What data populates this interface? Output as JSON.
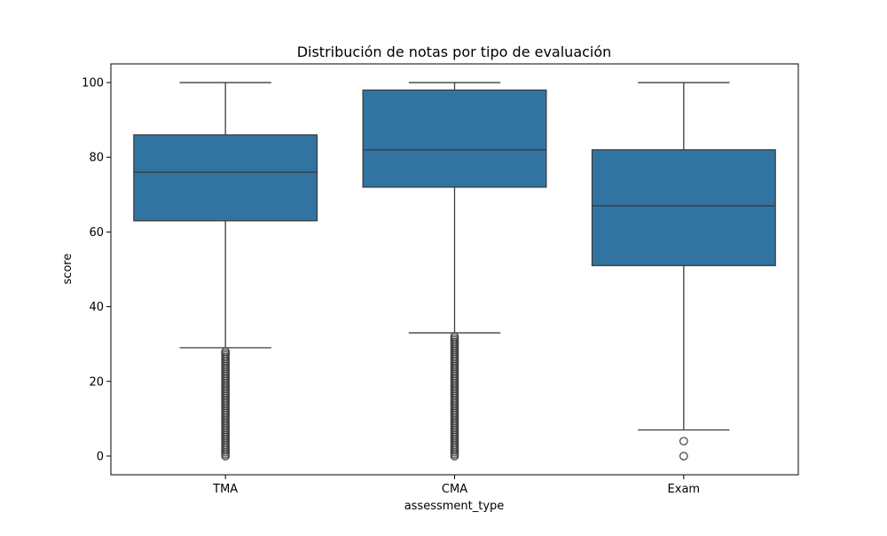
{
  "chart_data": {
    "type": "box",
    "title": "Distribución de notas por tipo de evaluación",
    "xlabel": "assessment_type",
    "ylabel": "score",
    "ylim": [
      -5,
      105
    ],
    "yticks": [
      0,
      20,
      40,
      60,
      80,
      100
    ],
    "grid": false,
    "legend": null,
    "box_color": "#3274a1",
    "line_color": "#3d3d3d",
    "categories": [
      "TMA",
      "CMA",
      "Exam"
    ],
    "boxes": [
      {
        "category": "TMA",
        "whisker_low": 29,
        "q1": 63,
        "median": 76,
        "q3": 86,
        "whisker_high": 100,
        "outliers": [
          0,
          0.5,
          1,
          1.5,
          2,
          2.5,
          3,
          3.5,
          4,
          4.5,
          5,
          5.5,
          6,
          6.5,
          7,
          7.5,
          8,
          8.5,
          9,
          9.5,
          10,
          10.5,
          11,
          11.5,
          12,
          12.5,
          13,
          13.5,
          14,
          14.5,
          15,
          15.5,
          16,
          16.5,
          17,
          17.5,
          18,
          18.5,
          19,
          19.5,
          20,
          20.5,
          21,
          21.5,
          22,
          22.5,
          23,
          23.5,
          24,
          24.5,
          25,
          25.5,
          26,
          26.5,
          27,
          27.5,
          28
        ]
      },
      {
        "category": "CMA",
        "whisker_low": 33,
        "q1": 72,
        "median": 82,
        "q3": 98,
        "whisker_high": 100,
        "outliers": [
          0,
          0.5,
          1,
          1.5,
          2,
          2.5,
          3,
          3.5,
          4,
          4.5,
          5,
          5.5,
          6,
          6.5,
          7,
          7.5,
          8,
          8.5,
          9,
          9.5,
          10,
          10.5,
          11,
          11.5,
          12,
          12.5,
          13,
          13.5,
          14,
          14.5,
          15,
          15.5,
          16,
          16.5,
          17,
          17.5,
          18,
          18.5,
          19,
          19.5,
          20,
          20.5,
          21,
          21.5,
          22,
          22.5,
          23,
          23.5,
          24,
          24.5,
          25,
          25.5,
          26,
          26.5,
          27,
          27.5,
          28,
          28.5,
          29,
          29.5,
          30,
          30.5,
          31,
          31.5,
          32
        ]
      },
      {
        "category": "Exam",
        "whisker_low": 7,
        "q1": 51,
        "median": 67,
        "q3": 82,
        "whisker_high": 100,
        "outliers": [
          0,
          4
        ]
      }
    ]
  }
}
